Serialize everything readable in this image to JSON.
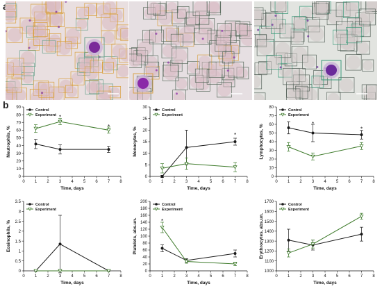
{
  "labels": {
    "a": "a",
    "b": "b"
  },
  "micrographs": [
    {
      "bg": "#e9dfe0",
      "cell_color": "#d9b8bf",
      "box_color": "#d9a040",
      "box_color2": "#6aa28c",
      "stain": "#7a2a9a"
    },
    {
      "bg": "#e6dfe2",
      "cell_color": "#d8bcc4",
      "box_color": "#5d6d60",
      "box_color2": "#d8a248",
      "stain": "#8a2aa8"
    },
    {
      "bg": "#e2e4e0",
      "cell_color": "#d2c8c8",
      "box_color": "#5c6860",
      "box_color2": "#3a9a7a",
      "stain": "#6a2a9a"
    }
  ],
  "colors": {
    "control": "#1a1a1a",
    "experiment": "#3d7a2a",
    "axis": "#111111"
  },
  "chart_data": [
    {
      "type": "line",
      "ylabel": "Neutrophils, %",
      "xlabel": "Time, days",
      "x": [
        1,
        3,
        7
      ],
      "xlim": [
        0,
        8
      ],
      "xticks": [
        0,
        1,
        2,
        3,
        4,
        5,
        6,
        7,
        8
      ],
      "ylim": [
        0,
        90
      ],
      "yticks": [
        0,
        10,
        20,
        30,
        40,
        50,
        60,
        70,
        80,
        90
      ],
      "legend": "top-left",
      "series": [
        {
          "name": "Control",
          "marker": "circle",
          "values": [
            42,
            35,
            35
          ],
          "errors": [
            6,
            6,
            4
          ]
        },
        {
          "name": "Experiment",
          "marker": "triangle",
          "values": [
            62,
            71,
            60
          ],
          "errors": [
            5,
            4,
            4
          ]
        }
      ],
      "annotations": [
        {
          "x": 3,
          "y": 77,
          "text": "*"
        },
        {
          "x": 7,
          "y": 65,
          "text": "*"
        }
      ]
    },
    {
      "type": "line",
      "ylabel": "Monocytes, %",
      "xlabel": "Time, days",
      "x": [
        1,
        3,
        7
      ],
      "xlim": [
        0,
        8
      ],
      "xticks": [
        0,
        1,
        2,
        3,
        4,
        5,
        6,
        7,
        8
      ],
      "ylim": [
        0,
        30
      ],
      "yticks": [
        0,
        5,
        10,
        15,
        20,
        25,
        30
      ],
      "legend": "top-left",
      "series": [
        {
          "name": "Control",
          "marker": "circle",
          "values": [
            0,
            12.5,
            15
          ],
          "errors": [
            0.5,
            7.5,
            1.5
          ]
        },
        {
          "name": "Experiment",
          "marker": "triangle",
          "values": [
            3.5,
            5.5,
            4
          ],
          "errors": [
            2,
            2.5,
            2
          ]
        }
      ],
      "annotations": [
        {
          "x": 7,
          "y": 18,
          "text": "*"
        }
      ]
    },
    {
      "type": "line",
      "ylabel": "Lymphocytes, %",
      "xlabel": "Time, days",
      "x": [
        1,
        3,
        7
      ],
      "xlim": [
        0,
        8
      ],
      "xticks": [
        0,
        1,
        2,
        3,
        4,
        5,
        6,
        7,
        8
      ],
      "ylim": [
        0,
        80
      ],
      "yticks": [
        0,
        10,
        20,
        30,
        40,
        50,
        60,
        70,
        80
      ],
      "legend": "top-left",
      "series": [
        {
          "name": "Control",
          "marker": "circle",
          "values": [
            56,
            50,
            48
          ],
          "errors": [
            7,
            10,
            5
          ]
        },
        {
          "name": "Experiment",
          "marker": "triangle",
          "values": [
            34,
            23,
            35
          ],
          "errors": [
            5,
            4,
            4
          ]
        }
      ],
      "annotations": [
        {
          "x": 3,
          "y": 61,
          "text": "*"
        },
        {
          "x": 7,
          "y": 55,
          "text": "*"
        }
      ]
    },
    {
      "type": "line",
      "ylabel": "Eosinophils, %",
      "xlabel": "Time, days",
      "x": [
        1,
        3,
        7
      ],
      "xlim": [
        0,
        8
      ],
      "xticks": [
        0,
        1,
        2,
        3,
        4,
        5,
        6,
        7,
        8
      ],
      "ylim": [
        0,
        3.5
      ],
      "yticks": [
        0,
        0.5,
        1,
        1.5,
        2,
        2.5,
        3,
        3.5
      ],
      "legend": "top-left",
      "series": [
        {
          "name": "Control",
          "marker": "circle",
          "values": [
            0,
            1.35,
            0
          ],
          "errors": [
            0,
            1.45,
            0
          ]
        },
        {
          "name": "Experiment",
          "marker": "triangle",
          "values": [
            0,
            0,
            0
          ],
          "errors": [
            0,
            0,
            0
          ]
        }
      ],
      "annotations": []
    },
    {
      "type": "line",
      "ylabel": "Platelets, abs.un.",
      "xlabel": "Time, days",
      "x": [
        1,
        3,
        7
      ],
      "xlim": [
        0,
        8
      ],
      "xticks": [
        0,
        1,
        2,
        3,
        4,
        5,
        6,
        7,
        8
      ],
      "ylim": [
        0,
        200
      ],
      "yticks": [
        0,
        20,
        40,
        60,
        80,
        100,
        120,
        140,
        160,
        180,
        200
      ],
      "legend": "top-left",
      "series": [
        {
          "name": "Control",
          "marker": "circle",
          "values": [
            65,
            30,
            50
          ],
          "errors": [
            10,
            5,
            10
          ]
        },
        {
          "name": "Experiment",
          "marker": "triangle",
          "values": [
            125,
            27,
            20
          ],
          "errors": [
            15,
            5,
            5
          ]
        }
      ],
      "annotations": [
        {
          "x": 1,
          "y": 144,
          "text": "*"
        }
      ]
    },
    {
      "type": "line",
      "ylabel": "Erythrocytes, abs.un.",
      "xlabel": "Time, days",
      "x": [
        1,
        3,
        7
      ],
      "xlim": [
        0,
        8
      ],
      "xticks": [
        0,
        1,
        2,
        3,
        4,
        5,
        6,
        7,
        8
      ],
      "ylim": [
        1000,
        1700
      ],
      "yticks": [
        1000,
        1100,
        1200,
        1300,
        1400,
        1500,
        1600,
        1700
      ],
      "legend": "top-left",
      "series": [
        {
          "name": "Control",
          "marker": "circle",
          "values": [
            1310,
            1260,
            1370
          ],
          "errors": [
            110,
            50,
            70
          ]
        },
        {
          "name": "Experiment",
          "marker": "triangle",
          "values": [
            1180,
            1270,
            1550
          ],
          "errors": [
            40,
            40,
            30
          ]
        }
      ],
      "annotations": []
    }
  ]
}
